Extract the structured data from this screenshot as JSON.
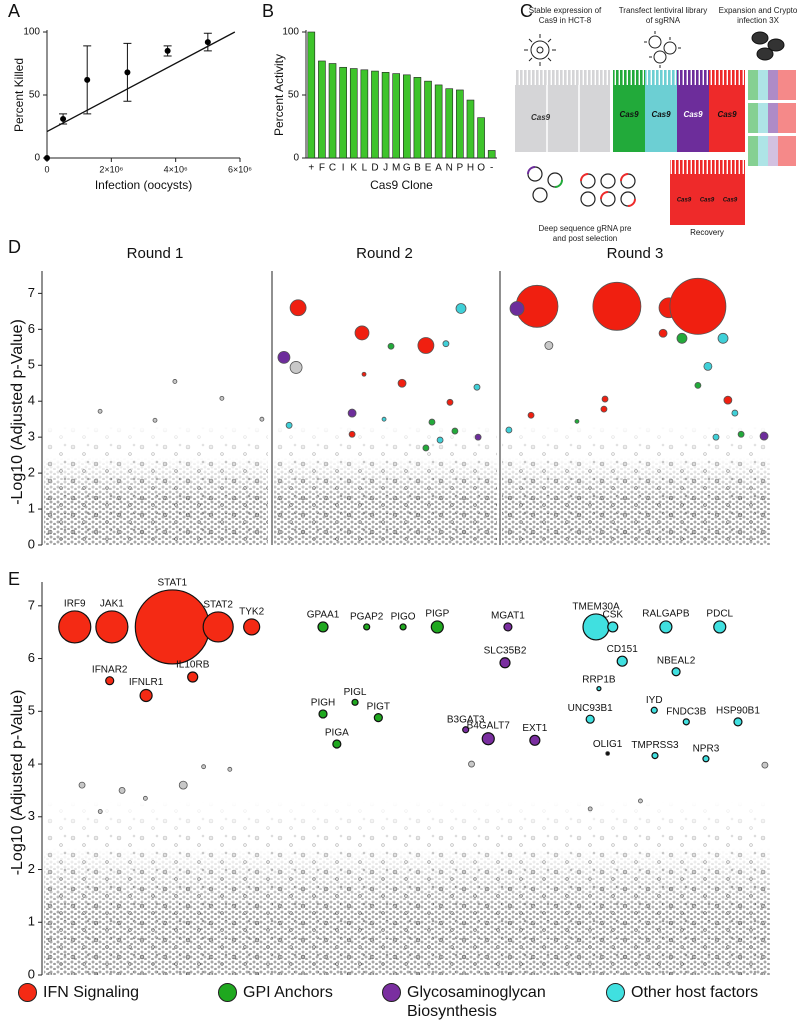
{
  "chart_data": [
    {
      "panel": "A",
      "type": "scatter",
      "ylabel": "Percent Killed",
      "xlabel": "Infection (oocysts)",
      "x": [
        0,
        500000,
        1250000,
        2500000,
        3750000,
        5000000
      ],
      "values": [
        0,
        31,
        62,
        68,
        85,
        92
      ],
      "errors": [
        0,
        4,
        27,
        23,
        4,
        7
      ],
      "fit": {
        "x": [
          0,
          5840000
        ],
        "values": [
          21,
          100
        ]
      },
      "xlim": [
        0,
        6000000
      ],
      "xticks": [
        0,
        {
          "value": 2000000,
          "label": "2×10⁶"
        },
        {
          "value": 4000000,
          "label": "4×10⁶"
        },
        {
          "value": 6000000,
          "label": "6×10⁶"
        }
      ],
      "ylim": [
        0,
        100
      ],
      "yticks": [
        0,
        50,
        100
      ],
      "color": "#000000"
    },
    {
      "panel": "B",
      "type": "bar",
      "ylabel": "Percent Activity",
      "xlabel": "Cas9 Clone",
      "categories": [
        "+",
        "F",
        "C",
        "I",
        "K",
        "L",
        "D",
        "J",
        "M",
        "G",
        "B",
        "E",
        "A",
        "N",
        "P",
        "H",
        "O",
        "-"
      ],
      "values": [
        100,
        77,
        75,
        72,
        71,
        70,
        69,
        68,
        67,
        66,
        64,
        61,
        58,
        55,
        54,
        46,
        32,
        6
      ],
      "ylim": [
        0,
        100
      ],
      "yticks": [
        0,
        50,
        100
      ],
      "color": "#3ec42b"
    },
    {
      "panel": "D",
      "type": "bubble",
      "title": "Round 1",
      "ylabel": "-Log10 (Adjusted p-Value)",
      "xlim": [
        0,
        100
      ],
      "ylim": [
        0,
        7.4
      ],
      "yticks": [
        0,
        1,
        2,
        3,
        4,
        5,
        6,
        7
      ],
      "series": [
        {
          "color": "#c8c8c8",
          "x": [
            58.8,
            79.6,
            25.7,
            50,
            97.3
          ],
          "values": [
            4.55,
            4.08,
            3.72,
            3.47,
            3.5
          ],
          "sizes": [
            2,
            2,
            2,
            2,
            2
          ]
        }
      ]
    },
    {
      "type": "bubble",
      "title": "Round 2",
      "xlim": [
        0,
        100
      ],
      "ylim": [
        0,
        7.4
      ],
      "series": [
        {
          "color": "#c8c8c8",
          "x": [
            10.7
          ],
          "values": [
            4.94
          ],
          "sizes": [
            6
          ]
        },
        {
          "color": "#f01f10",
          "x": [
            11.6,
            40,
            68.4,
            57.8,
            40.9,
            79.1,
            35.6
          ],
          "values": [
            6.6,
            5.9,
            5.55,
            4.5,
            4.75,
            3.97,
            3.08
          ],
          "sizes": [
            8,
            7,
            8,
            4,
            2,
            3,
            3
          ]
        },
        {
          "color": "#22aa3a",
          "x": [
            52.9,
            71.1,
            81.3,
            68.4
          ],
          "values": [
            5.53,
            3.42,
            3.17,
            2.7
          ],
          "sizes": [
            3,
            3,
            3,
            3
          ]
        },
        {
          "color": "#6d2d9b",
          "x": [
            5.3,
            35.6,
            91.6
          ],
          "values": [
            5.22,
            3.67,
            3.0
          ],
          "sizes": [
            6,
            4,
            3
          ]
        },
        {
          "color": "#3fd0d8",
          "x": [
            84,
            77.3,
            91.1,
            49.8,
            74.7,
            7.6
          ],
          "values": [
            6.58,
            5.6,
            4.39,
            3.5,
            2.92,
            3.33
          ],
          "sizes": [
            5,
            3,
            3,
            2,
            3,
            3
          ]
        }
      ]
    },
    {
      "type": "bubble",
      "title": "Round 3",
      "xlim": [
        0,
        100
      ],
      "ylim": [
        0,
        7.4
      ],
      "series": [
        {
          "color": "#c8c8c8",
          "x": [
            18.1
          ],
          "values": [
            5.55
          ],
          "sizes": [
            4
          ]
        },
        {
          "color": "#f01f10",
          "x": [
            13.7,
            43.3,
            62.6,
            73.3,
            60.4,
            11.5,
            38.9,
            38.5,
            84.4
          ],
          "values": [
            6.64,
            6.64,
            6.6,
            6.64,
            5.89,
            3.61,
            4.06,
            3.78,
            4.03
          ],
          "sizes": [
            21,
            24,
            10,
            28,
            4,
            3,
            3,
            3,
            4
          ]
        },
        {
          "color": "#22aa3a",
          "x": [
            67.4,
            73.3,
            28.5,
            89.3
          ],
          "values": [
            5.75,
            4.44,
            3.44,
            3.08
          ],
          "sizes": [
            5,
            3,
            2,
            3
          ]
        },
        {
          "color": "#6d2d9b",
          "x": [
            6.3,
            97.8
          ],
          "values": [
            6.58,
            3.03
          ],
          "sizes": [
            7,
            4
          ]
        },
        {
          "color": "#3fd0d8",
          "x": [
            82.6,
            77,
            87,
            80,
            3.3
          ],
          "values": [
            5.75,
            4.97,
            3.67,
            3.0,
            3.2
          ],
          "sizes": [
            5,
            4,
            3,
            3,
            3
          ]
        }
      ]
    },
    {
      "panel": "E",
      "type": "bubble",
      "ylabel": "-Log10 (Adjusted p-Value)",
      "xlim": [
        0,
        100
      ],
      "ylim": [
        0,
        7.3
      ],
      "yticks": [
        0,
        1,
        2,
        3,
        4,
        5,
        6,
        7
      ],
      "legend": "bottom",
      "series": [
        {
          "color": "#c8c8c8",
          "x": [
            5.5,
            8,
            11,
            14.2,
            19.4,
            22.2,
            25.8,
            59,
            75.3,
            82.2,
            99.3
          ],
          "values": [
            3.6,
            3.1,
            3.5,
            3.35,
            3.6,
            3.95,
            3.9,
            4.0,
            3.15,
            3.3,
            3.98
          ],
          "sizes": [
            3,
            2,
            3,
            2,
            4,
            2,
            2,
            3,
            2,
            2,
            3
          ]
        },
        {
          "name": "IFN Signaling",
          "color": "#f42a14",
          "x": [
            4.5,
            9.6,
            17.9,
            24.2,
            28.8,
            9.3,
            14.3,
            20.7
          ],
          "values": [
            6.6,
            6.6,
            6.6,
            6.6,
            6.6,
            5.58,
            5.3,
            5.65
          ],
          "sizes": [
            16,
            16,
            37,
            15,
            8,
            4,
            6,
            5
          ],
          "labels": [
            "IRF9",
            "JAK1",
            "STAT1",
            "STAT2",
            "TYK2",
            "IFNAR2",
            "IFNLR1",
            "IL10RB"
          ]
        },
        {
          "name": "GPI Anchors",
          "color": "#1fa81f",
          "x": [
            38.6,
            44.6,
            49.6,
            54.3,
            38.6,
            43.0,
            46.2,
            40.5
          ],
          "values": [
            6.6,
            6.6,
            6.6,
            6.6,
            4.95,
            5.17,
            4.88,
            4.38
          ],
          "sizes": [
            5,
            3,
            3,
            6,
            4,
            3,
            4,
            4
          ],
          "labels": [
            "GPAA1",
            "PGAP2",
            "PIGO",
            "PIGP",
            "PIGH",
            "PIGL",
            "PIGT",
            "PIGA"
          ]
        },
        {
          "name": "Glycosaminoglycan Biosynthesis",
          "color": "#7a2ea0",
          "x": [
            64.0,
            63.6,
            58.2,
            61.3,
            67.7
          ],
          "values": [
            6.6,
            5.92,
            4.65,
            4.48,
            4.45
          ],
          "sizes": [
            4,
            5,
            3,
            6,
            5
          ],
          "labels": [
            "MGAT1",
            "SLC35B2",
            "B3GAT3",
            "B4GALT7",
            "EXT1"
          ]
        },
        {
          "name": "Other host factors",
          "color": "#40e0e0",
          "x": [
            76.1,
            78.4,
            85.7,
            93.1,
            79.7,
            87.1,
            76.5,
            84.1,
            75.3,
            88.5,
            95.6,
            84.2,
            91.2
          ],
          "values": [
            6.6,
            6.6,
            6.6,
            6.6,
            5.95,
            5.75,
            5.43,
            5.02,
            4.85,
            4.8,
            4.8,
            4.16,
            4.1
          ],
          "sizes": [
            13,
            5,
            6,
            6,
            5,
            4,
            2,
            3,
            4,
            3,
            4,
            3,
            3
          ],
          "labels": [
            "TMEM30A",
            "CSK",
            "RALGAPB",
            "PDCL",
            "CD151",
            "NBEAL2",
            "RRP1B",
            "IYD",
            "UNC93B1",
            "FNDC3B",
            "HSP90B1",
            "TMPRSS3",
            "NPR3"
          ]
        },
        {
          "color": "#111111",
          "x": [
            77.7
          ],
          "values": [
            4.2
          ],
          "sizes": [
            2
          ],
          "labels": [
            "OLIG1"
          ]
        }
      ]
    }
  ],
  "diagram": {
    "panel": "C",
    "steps": [
      "Stable expression of Cas9 in HCT-8",
      "Transfect lentiviral library of sgRNA",
      "Expansion and Crypto infection 3X"
    ],
    "cell_label": "Cas9",
    "sequencing": "Deep sequence gRNA pre and post selection",
    "recovery": "Recovery"
  }
}
